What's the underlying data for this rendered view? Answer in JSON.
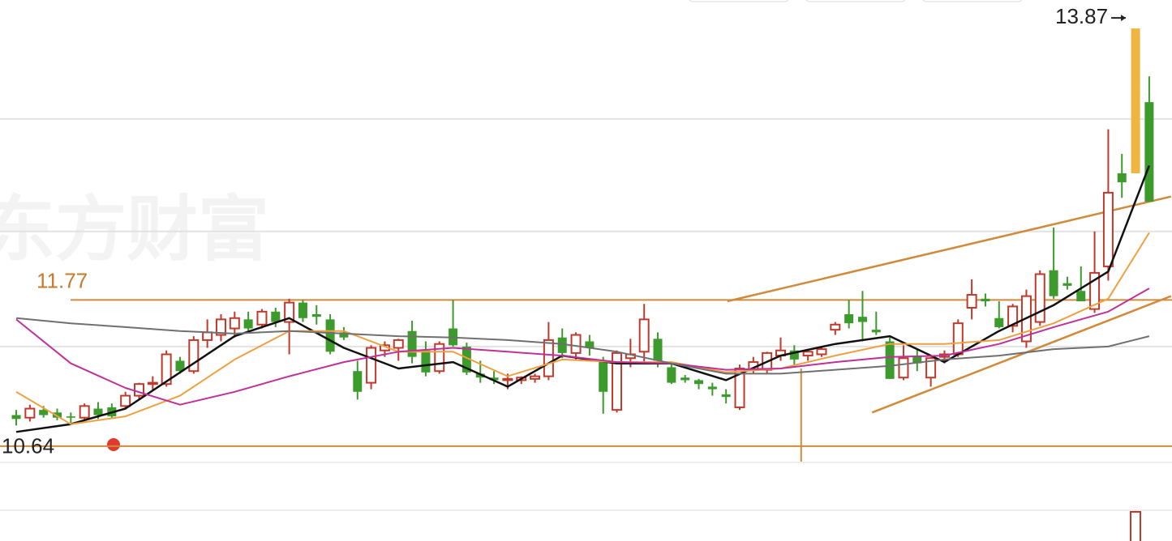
{
  "chart_data": {
    "type": "candlestick",
    "watermark": "东方财富",
    "candle_fields": [
      "open",
      "high",
      "low",
      "close"
    ],
    "candles": [
      [
        10.88,
        10.92,
        10.8,
        10.85
      ],
      [
        10.86,
        10.96,
        10.83,
        10.93
      ],
      [
        10.92,
        10.95,
        10.86,
        10.88
      ],
      [
        10.9,
        10.93,
        10.84,
        10.86
      ],
      [
        10.87,
        10.9,
        10.82,
        10.86
      ],
      [
        10.86,
        10.97,
        10.84,
        10.95
      ],
      [
        10.93,
        10.98,
        10.85,
        10.88
      ],
      [
        10.94,
        10.97,
        10.85,
        10.87
      ],
      [
        10.95,
        11.06,
        10.93,
        11.03
      ],
      [
        11.03,
        11.13,
        11.0,
        11.12
      ],
      [
        11.12,
        11.18,
        11.07,
        11.13
      ],
      [
        11.12,
        11.38,
        11.1,
        11.35
      ],
      [
        11.3,
        11.33,
        11.2,
        11.22
      ],
      [
        11.22,
        11.49,
        11.2,
        11.46
      ],
      [
        11.46,
        11.62,
        11.4,
        11.52
      ],
      [
        11.5,
        11.66,
        11.45,
        11.62
      ],
      [
        11.55,
        11.68,
        11.48,
        11.63
      ],
      [
        11.62,
        11.68,
        11.52,
        11.55
      ],
      [
        11.58,
        11.7,
        11.55,
        11.68
      ],
      [
        11.68,
        11.71,
        11.56,
        11.6
      ],
      [
        11.6,
        11.78,
        11.35,
        11.75
      ],
      [
        11.75,
        11.77,
        11.6,
        11.63
      ],
      [
        11.66,
        11.73,
        11.58,
        11.64
      ],
      [
        11.62,
        11.66,
        11.35,
        11.37
      ],
      [
        11.52,
        11.56,
        11.46,
        11.48
      ],
      [
        11.22,
        11.3,
        11.0,
        11.06
      ],
      [
        11.13,
        11.42,
        11.08,
        11.4
      ],
      [
        11.38,
        11.45,
        11.33,
        11.42
      ],
      [
        11.4,
        11.47,
        11.3,
        11.46
      ],
      [
        11.53,
        11.61,
        11.28,
        11.33
      ],
      [
        11.38,
        11.45,
        11.18,
        11.21
      ],
      [
        11.22,
        11.45,
        11.2,
        11.43
      ],
      [
        11.55,
        11.77,
        11.41,
        11.42
      ],
      [
        11.41,
        11.44,
        11.19,
        11.21
      ],
      [
        11.2,
        11.3,
        11.13,
        11.17
      ],
      [
        11.17,
        11.22,
        11.12,
        11.15
      ],
      [
        11.15,
        11.2,
        11.08,
        11.16
      ],
      [
        11.15,
        11.18,
        11.12,
        11.17
      ],
      [
        11.16,
        11.2,
        11.13,
        11.18
      ],
      [
        11.18,
        11.6,
        11.15,
        11.46
      ],
      [
        11.48,
        11.55,
        11.32,
        11.36
      ],
      [
        11.36,
        11.52,
        11.3,
        11.5
      ],
      [
        11.45,
        11.5,
        11.34,
        11.4
      ],
      [
        11.3,
        11.33,
        10.89,
        11.06
      ],
      [
        10.92,
        11.38,
        10.9,
        11.36
      ],
      [
        11.32,
        11.47,
        11.25,
        11.35
      ],
      [
        11.37,
        11.74,
        11.28,
        11.62
      ],
      [
        11.47,
        11.52,
        11.25,
        11.3
      ],
      [
        11.25,
        11.28,
        11.12,
        11.13
      ],
      [
        11.17,
        11.19,
        11.13,
        11.15
      ],
      [
        11.15,
        11.16,
        11.08,
        11.12
      ],
      [
        11.1,
        11.13,
        11.03,
        11.08
      ],
      [
        11.04,
        11.08,
        10.97,
        11.02
      ],
      [
        10.94,
        11.27,
        10.92,
        11.24
      ],
      [
        11.23,
        11.33,
        11.2,
        11.29
      ],
      [
        11.23,
        11.37,
        11.2,
        11.36
      ],
      [
        11.34,
        11.48,
        11.3,
        11.38
      ],
      [
        11.38,
        11.42,
        11.27,
        11.31
      ],
      [
        11.34,
        11.39,
        11.3,
        11.37
      ],
      [
        11.35,
        11.41,
        11.33,
        11.39
      ],
      [
        11.54,
        11.6,
        11.5,
        11.58
      ],
      [
        11.66,
        11.77,
        11.55,
        11.59
      ],
      [
        11.64,
        11.84,
        11.45,
        11.6
      ],
      [
        11.54,
        11.68,
        11.5,
        11.52
      ],
      [
        11.45,
        11.48,
        11.16,
        11.16
      ],
      [
        11.17,
        11.42,
        11.15,
        11.32
      ],
      [
        11.34,
        11.39,
        11.22,
        11.28
      ],
      [
        11.17,
        11.33,
        11.1,
        11.32
      ],
      [
        11.33,
        11.38,
        11.28,
        11.35
      ],
      [
        11.35,
        11.62,
        11.33,
        11.59
      ],
      [
        11.71,
        11.93,
        11.62,
        11.81
      ],
      [
        11.78,
        11.82,
        11.72,
        11.76
      ],
      [
        11.63,
        11.76,
        11.55,
        11.56
      ],
      [
        11.57,
        11.74,
        11.52,
        11.72
      ],
      [
        11.45,
        11.85,
        11.4,
        11.8
      ],
      [
        11.6,
        12.0,
        11.57,
        11.97
      ],
      [
        12.0,
        12.33,
        11.78,
        11.8
      ],
      [
        11.9,
        11.95,
        11.85,
        11.88
      ],
      [
        11.84,
        12.03,
        11.76,
        11.76
      ],
      [
        11.7,
        12.3,
        11.67,
        11.98
      ],
      [
        12.03,
        13.09,
        11.92,
        12.6
      ],
      [
        12.75,
        12.9,
        12.56,
        12.68
      ],
      [
        13.87,
        13.87,
        12.75,
        12.75
      ],
      [
        13.3,
        13.5,
        12.53,
        12.53
      ]
    ],
    "up_color": "#c0392b",
    "down_color": "#3d9a2d",
    "highlight_index": 82,
    "highlight_color": "#f0b441",
    "ma_x": [
      0,
      4,
      8,
      12,
      16,
      20,
      24,
      28,
      32,
      36,
      40,
      44,
      48,
      52,
      56,
      60,
      64,
      68,
      72,
      76,
      80,
      83
    ],
    "series": [
      {
        "color": "#111111",
        "values": [
          10.75,
          10.81,
          10.93,
          11.21,
          11.49,
          11.63,
          11.4,
          11.24,
          11.29,
          11.1,
          11.34,
          11.28,
          11.28,
          11.15,
          11.34,
          11.43,
          11.49,
          11.29,
          11.53,
          11.73,
          11.99,
          12.81
        ]
      },
      {
        "color": "#eea040",
        "values": [
          11.06,
          10.81,
          10.87,
          11.03,
          11.31,
          11.53,
          11.53,
          11.37,
          11.37,
          11.18,
          11.31,
          11.29,
          11.29,
          11.21,
          11.24,
          11.34,
          11.43,
          11.43,
          11.46,
          11.59,
          11.78,
          12.29
        ]
      },
      {
        "color": "#c0309a",
        "values": [
          11.62,
          11.28,
          11.09,
          10.96,
          11.06,
          11.18,
          11.29,
          11.37,
          11.4,
          11.37,
          11.34,
          11.29,
          11.28,
          11.23,
          11.24,
          11.29,
          11.33,
          11.34,
          11.43,
          11.56,
          11.68,
          11.86
        ]
      },
      {
        "color": "#707070",
        "values": [
          11.63,
          11.59,
          11.56,
          11.53,
          11.51,
          11.53,
          11.51,
          11.49,
          11.48,
          11.46,
          11.43,
          11.37,
          11.28,
          11.2,
          11.2,
          11.23,
          11.26,
          11.31,
          11.34,
          11.39,
          11.41,
          11.49
        ]
      }
    ],
    "hlines": [
      11.77,
      10.64
    ],
    "trendlines": [
      [
        52.1,
        11.76,
        84.6,
        12.57
      ],
      [
        62.7,
        10.9,
        84.6,
        11.8
      ]
    ],
    "vline": 57.5,
    "annotation_color": "#d08a3a",
    "grid_values": [
      13.17,
      12.3,
      11.41
    ],
    "xlim": [
      -1.19,
      84.67
    ],
    "ylim": [
      10.52,
      14.09
    ]
  }
}
